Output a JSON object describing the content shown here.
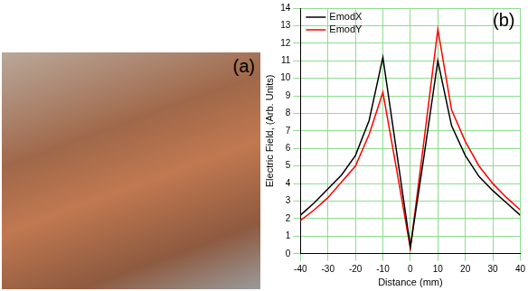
{
  "photo": {
    "label": "(a)"
  },
  "chart_data": {
    "type": "line",
    "annotations": [
      "(b)"
    ],
    "x_label": "Distance (mm)",
    "y_label": "Electric Field, (Arb. Units)",
    "x": [
      -40,
      -35,
      -30,
      -25,
      -20,
      -15,
      -10,
      -5,
      0,
      5,
      10,
      15,
      20,
      25,
      30,
      35,
      40
    ],
    "series": [
      {
        "name": "EmodX",
        "color": "#000000",
        "values": [
          2.2,
          2.9,
          3.7,
          4.5,
          5.6,
          7.6,
          11.2,
          5.8,
          0.4,
          5.6,
          11.0,
          7.3,
          5.6,
          4.4,
          3.6,
          2.9,
          2.2
        ]
      },
      {
        "name": "EmodY",
        "color": "#ff0000",
        "values": [
          1.9,
          2.5,
          3.2,
          4.1,
          5.0,
          6.8,
          9.2,
          4.8,
          0.3,
          6.5,
          12.8,
          8.2,
          6.4,
          5.0,
          4.0,
          3.2,
          2.5
        ]
      }
    ],
    "xlim": [
      -40,
      40
    ],
    "xticks": [
      -40,
      -30,
      -20,
      -10,
      0,
      10,
      20,
      30,
      40
    ],
    "ylim": [
      0,
      14
    ],
    "yticks": [
      0,
      1,
      2,
      3,
      4,
      5,
      6,
      7,
      8,
      9,
      10,
      11,
      12,
      13,
      14
    ],
    "grid": true,
    "legend": "top-left"
  }
}
